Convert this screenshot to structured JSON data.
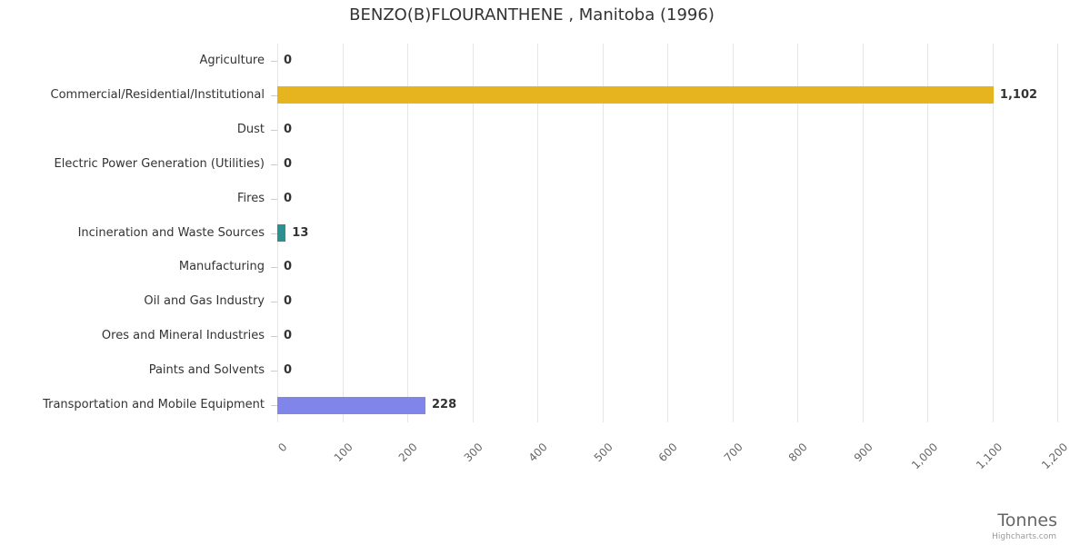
{
  "chart_data": {
    "type": "bar",
    "orientation": "horizontal",
    "title": "BENZO(B)FLOURANTHENE , Manitoba (1996)",
    "categories": [
      "Agriculture",
      "Commercial/Residential/Institutional",
      "Dust",
      "Electric Power Generation (Utilities)",
      "Fires",
      "Incineration and Waste Sources",
      "Manufacturing",
      "Oil and Gas Industry",
      "Ores and Mineral Industries",
      "Paints and Solvents",
      "Transportation and Mobile Equipment"
    ],
    "values": [
      0,
      1102,
      0,
      0,
      0,
      13,
      0,
      0,
      0,
      0,
      228
    ],
    "value_labels": [
      "0",
      "1,102",
      "0",
      "0",
      "0",
      "13",
      "0",
      "0",
      "0",
      "0",
      "228"
    ],
    "bar_colors": [
      null,
      "#e6b41e",
      null,
      null,
      null,
      "#2b908f",
      null,
      null,
      null,
      null,
      "#8085e9"
    ],
    "xlabel": "Tonnes",
    "xlim": [
      0,
      1200
    ],
    "x_ticks": [
      0,
      100,
      200,
      300,
      400,
      500,
      600,
      700,
      800,
      900,
      1000,
      1100,
      1200
    ],
    "x_tick_labels": [
      "0",
      "100",
      "200",
      "300",
      "400",
      "500",
      "600",
      "700",
      "800",
      "900",
      "1,000",
      "1,100",
      "1,200"
    ],
    "grid": true,
    "legend": false,
    "credit": "Highcharts.com",
    "colors": {
      "grid": "#e6e6e6",
      "tick": "#cccccc",
      "label_text": "#333333",
      "axis_text": "#666666"
    }
  }
}
